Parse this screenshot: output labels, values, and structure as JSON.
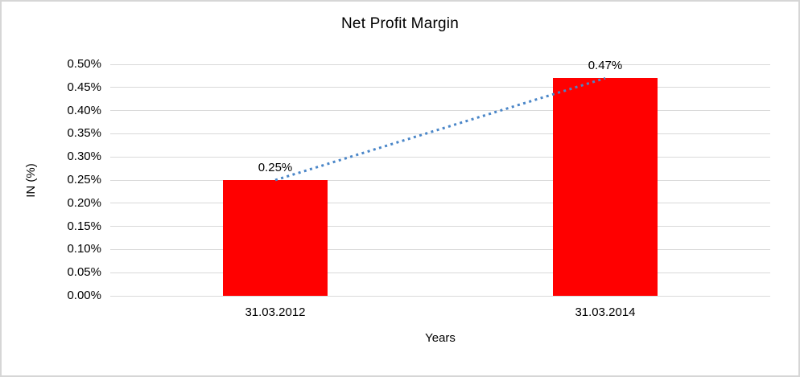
{
  "frame": {
    "background": "#ffffff",
    "border_color": "#d6d6d6"
  },
  "chart_data": {
    "type": "bar",
    "title": "Net Profit Margin",
    "xlabel": "Years",
    "ylabel": "IN (%)",
    "categories": [
      "31.03.2012",
      "31.03.2014"
    ],
    "series": [
      {
        "name": "Net Profit Margin",
        "values": [
          0.25,
          0.47
        ]
      }
    ],
    "data_labels": [
      "0.25%",
      "0.47%"
    ],
    "ylim": [
      0,
      0.5
    ],
    "ytick_step": 0.05,
    "yticks": [
      "0.00%",
      "0.05%",
      "0.10%",
      "0.15%",
      "0.20%",
      "0.25%",
      "0.30%",
      "0.35%",
      "0.40%",
      "0.45%",
      "0.50%"
    ],
    "grid": true,
    "legend": "none",
    "bar_color": "#ff0000",
    "gridline_color": "#d9d9d9",
    "text_color": "#000000",
    "trendline": {
      "style": "dotted",
      "color": "#4a86c8",
      "from_value": 0.25,
      "to_value": 0.47
    }
  }
}
